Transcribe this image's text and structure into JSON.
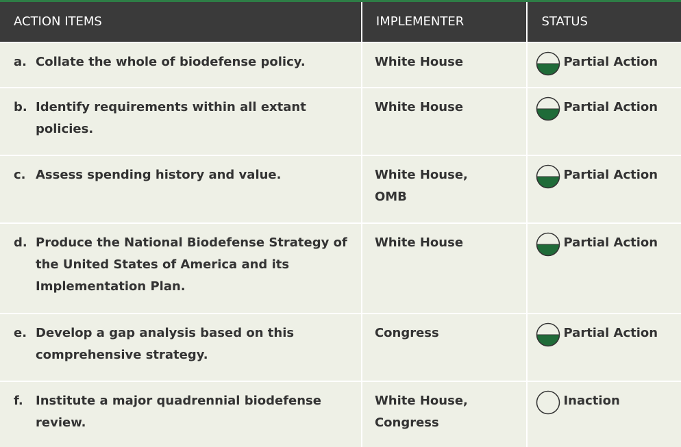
{
  "table": {
    "header": [
      "ACTION ITEMS",
      "IMPLEMENTER",
      "STATUS"
    ],
    "rows": [
      {
        "letter": "a.",
        "action": "Collate the whole of biodefense policy.",
        "implementer": "White House",
        "status": "Partial Action",
        "icon": "half"
      },
      {
        "letter": "b.",
        "action": "Identify requirements within all extant policies.",
        "implementer": "White House",
        "status": "Partial Action",
        "icon": "half"
      },
      {
        "letter": "c.",
        "action": "Assess spending history and value.",
        "implementer": "White House, OMB",
        "status": "Partial Action",
        "icon": "half"
      },
      {
        "letter": "d.",
        "action": "Produce the National Biodefense Strategy of the United States of America and its Implementation Plan.",
        "implementer": "White House",
        "status": "Partial Action",
        "icon": "half"
      },
      {
        "letter": "e.",
        "action": "Develop a gap analysis based on this comprehensive strategy.",
        "implementer": "Congress",
        "status": "Partial Action",
        "icon": "half"
      },
      {
        "letter": "f.",
        "action": "Institute a major quadrennial biodefense review.",
        "implementer": "White House, Congress",
        "status": "Inaction",
        "icon": "none"
      }
    ]
  }
}
